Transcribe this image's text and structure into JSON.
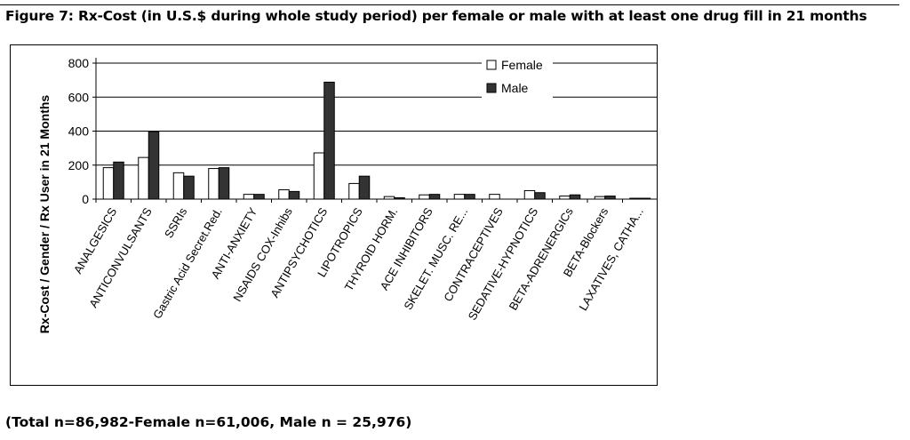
{
  "figure": {
    "title": "Figure 7: Rx-Cost (in U.S.$ during whole study period) per female or male with at least one drug fill in 21 months",
    "footnote": "(Total n=86,982-Female n=61,006, Male n = 25,976)"
  },
  "chart_data": {
    "type": "bar",
    "title": "",
    "xlabel": "",
    "ylabel": "Rx-Cost / Gender / Rx User in 21 Months",
    "ylim": [
      0,
      800
    ],
    "yticks": [
      0,
      200,
      400,
      600,
      800
    ],
    "grid": true,
    "legend_position": "top-right",
    "categories": [
      "ANALGESICS",
      "ANTICONVULSANTS",
      "SSRIs",
      "Gastric Acid Secret.Red.",
      "ANTI-ANXIETY",
      "NSAIDS COX-Inhibs",
      "ANTIPSYCHOTICS",
      "LIPOTROPICS",
      "THYROID HORM.",
      "ACE INHIBITORS",
      "SKELET. MUSC. RE...",
      "CONTRACEPTIVES",
      "SEDATIVE-HYPNOTICS",
      "BETA-ADRENERGICs",
      "BETA-Blockers",
      "LAXATIVES, CATHA..."
    ],
    "series": [
      {
        "name": "Female",
        "fill": "#ffffff",
        "values": [
          185,
          245,
          155,
          180,
          28,
          55,
          272,
          92,
          15,
          25,
          28,
          28,
          50,
          18,
          15,
          5
        ]
      },
      {
        "name": "Male",
        "fill": "#333333",
        "values": [
          218,
          397,
          135,
          185,
          28,
          45,
          688,
          135,
          8,
          28,
          28,
          0,
          38,
          25,
          18,
          5
        ]
      }
    ]
  }
}
